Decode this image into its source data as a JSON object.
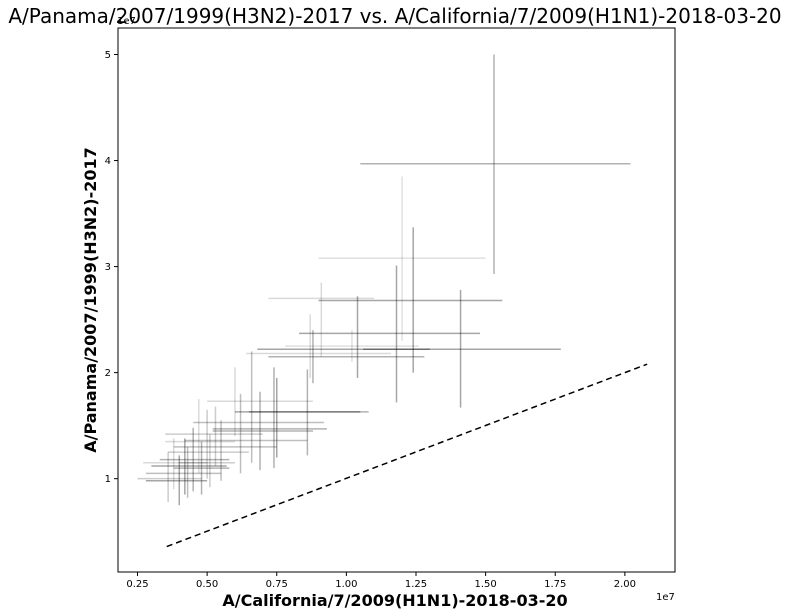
{
  "chart_data": {
    "type": "scatter",
    "title": "A/Panama/2007/1999(H3N2)-2017 vs. A/California/7/2009(H1N1)-2018-03-20",
    "xlabel": "A/California/7/2009(H1N1)-2018-03-20",
    "ylabel": "A/Panama/2007/1999(H3N2)-2017",
    "x_offset_label": "1e7",
    "y_offset_label": "1e7",
    "xlim": [
      0.18,
      2.18
    ],
    "ylim": [
      0.12,
      5.25
    ],
    "x_ticks": [
      0.25,
      0.5,
      0.75,
      1.0,
      1.25,
      1.5,
      1.75,
      2.0
    ],
    "x_tick_labels": [
      "0.25",
      "0.50",
      "0.75",
      "1.00",
      "1.25",
      "1.50",
      "1.75",
      "2.00"
    ],
    "y_ticks": [
      1,
      2,
      3,
      4,
      5
    ],
    "y_tick_labels": [
      "1",
      "2",
      "3",
      "4",
      "5"
    ],
    "grid": false,
    "reference_line": {
      "style": "dashed",
      "color": "#000000",
      "points": [
        [
          0.355,
          0.36
        ],
        [
          2.08,
          2.08
        ]
      ]
    },
    "points": [
      {
        "x": 1.53,
        "y": 3.97,
        "xerr": [
          1.05,
          2.02
        ],
        "yerr": [
          2.93,
          5.0
        ],
        "opacity": 0.3
      },
      {
        "x": 1.2,
        "y": 3.08,
        "xerr": [
          0.9,
          1.5
        ],
        "yerr": [
          2.3,
          3.85
        ],
        "opacity": 0.12
      },
      {
        "x": 1.24,
        "y": 2.68,
        "xerr": [
          0.9,
          1.56
        ],
        "yerr": [
          2.0,
          3.37
        ],
        "opacity": 0.35
      },
      {
        "x": 1.18,
        "y": 2.37,
        "xerr": [
          0.83,
          1.48
        ],
        "yerr": [
          1.72,
          3.01
        ],
        "opacity": 0.35
      },
      {
        "x": 1.41,
        "y": 2.22,
        "xerr": [
          1.06,
          1.77
        ],
        "yerr": [
          1.67,
          2.78
        ],
        "opacity": 0.35
      },
      {
        "x": 0.91,
        "y": 2.7,
        "xerr": [
          0.72,
          1.1
        ],
        "yerr": [
          2.15,
          2.85
        ],
        "opacity": 0.15
      },
      {
        "x": 1.04,
        "y": 2.22,
        "xerr": [
          0.68,
          1.3
        ],
        "yerr": [
          1.95,
          2.72
        ],
        "opacity": 0.35
      },
      {
        "x": 1.02,
        "y": 2.25,
        "xerr": [
          0.78,
          1.26
        ],
        "yerr": [
          2.1,
          2.4
        ],
        "opacity": 0.12
      },
      {
        "x": 0.87,
        "y": 2.18,
        "xerr": [
          0.64,
          1.16
        ],
        "yerr": [
          1.95,
          2.55
        ],
        "opacity": 0.15
      },
      {
        "x": 0.88,
        "y": 2.15,
        "xerr": [
          0.72,
          1.28
        ],
        "yerr": [
          1.9,
          2.4
        ],
        "opacity": 0.3
      },
      {
        "x": 0.6,
        "y": 1.73,
        "xerr": [
          0.5,
          0.88
        ],
        "yerr": [
          1.4,
          2.05
        ],
        "opacity": 0.15
      },
      {
        "x": 0.86,
        "y": 1.63,
        "xerr": [
          0.65,
          1.08
        ],
        "yerr": [
          1.22,
          2.03
        ],
        "opacity": 0.3
      },
      {
        "x": 0.75,
        "y": 1.63,
        "xerr": [
          0.6,
          1.05
        ],
        "yerr": [
          1.2,
          1.95
        ],
        "opacity": 0.35
      },
      {
        "x": 0.66,
        "y": 1.53,
        "xerr": [
          0.45,
          0.92
        ],
        "yerr": [
          1.15,
          2.2
        ],
        "opacity": 0.25
      },
      {
        "x": 0.74,
        "y": 1.47,
        "xerr": [
          0.52,
          0.93
        ],
        "yerr": [
          1.1,
          2.05
        ],
        "opacity": 0.3
      },
      {
        "x": 0.69,
        "y": 1.45,
        "xerr": [
          0.52,
          0.88
        ],
        "yerr": [
          1.08,
          1.82
        ],
        "opacity": 0.3
      },
      {
        "x": 0.62,
        "y": 1.36,
        "xerr": [
          0.42,
          0.86
        ],
        "yerr": [
          1.05,
          1.8
        ],
        "opacity": 0.25
      },
      {
        "x": 0.53,
        "y": 1.42,
        "xerr": [
          0.35,
          0.7
        ],
        "yerr": [
          1.12,
          1.68
        ],
        "opacity": 0.2
      },
      {
        "x": 0.55,
        "y": 1.3,
        "xerr": [
          0.38,
          0.75
        ],
        "yerr": [
          0.98,
          1.55
        ],
        "opacity": 0.25
      },
      {
        "x": 0.5,
        "y": 1.25,
        "xerr": [
          0.36,
          0.65
        ],
        "yerr": [
          1.0,
          1.65
        ],
        "opacity": 0.2
      },
      {
        "x": 0.47,
        "y": 1.35,
        "xerr": [
          0.35,
          0.6
        ],
        "yerr": [
          1.05,
          1.75
        ],
        "opacity": 0.15
      },
      {
        "x": 0.45,
        "y": 1.18,
        "xerr": [
          0.33,
          0.58
        ],
        "yerr": [
          0.88,
          1.48
        ],
        "opacity": 0.3
      },
      {
        "x": 0.42,
        "y": 1.12,
        "xerr": [
          0.3,
          0.57
        ],
        "yerr": [
          0.85,
          1.38
        ],
        "opacity": 0.35
      },
      {
        "x": 0.43,
        "y": 1.05,
        "xerr": [
          0.28,
          0.55
        ],
        "yerr": [
          0.82,
          1.3
        ],
        "opacity": 0.25
      },
      {
        "x": 0.4,
        "y": 0.98,
        "xerr": [
          0.28,
          0.5
        ],
        "yerr": [
          0.75,
          1.22
        ],
        "opacity": 0.35
      },
      {
        "x": 0.38,
        "y": 1.15,
        "xerr": [
          0.27,
          0.5
        ],
        "yerr": [
          0.9,
          1.38
        ],
        "opacity": 0.15
      },
      {
        "x": 0.36,
        "y": 1.0,
        "xerr": [
          0.25,
          0.48
        ],
        "yerr": [
          0.78,
          1.25
        ],
        "opacity": 0.2
      },
      {
        "x": 0.48,
        "y": 1.1,
        "xerr": [
          0.38,
          0.58
        ],
        "yerr": [
          0.85,
          1.35
        ],
        "opacity": 0.3
      },
      {
        "x": 0.51,
        "y": 1.15,
        "xerr": [
          0.4,
          0.6
        ],
        "yerr": [
          0.92,
          1.42
        ],
        "opacity": 0.2
      }
    ]
  }
}
